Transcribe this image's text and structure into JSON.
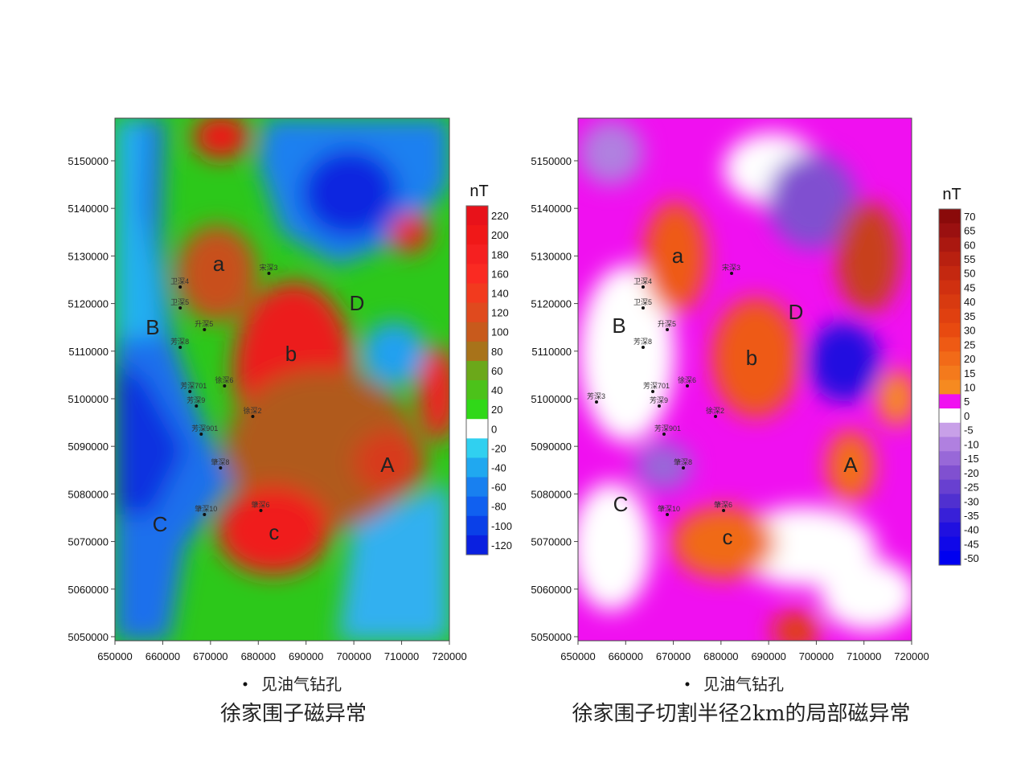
{
  "chart_data": [
    {
      "type": "contour",
      "unit": "nT",
      "caption": "徐家围子磁异常",
      "legend": "见油气钻孔",
      "xlim": [
        650000,
        720000
      ],
      "ylim": [
        5049150,
        5158950
      ],
      "xticks": [
        650000,
        660000,
        670000,
        680000,
        690000,
        700000,
        710000,
        720000
      ],
      "yticks": [
        5050000,
        5060000,
        5070000,
        5080000,
        5090000,
        5100000,
        5110000,
        5120000,
        5130000,
        5140000,
        5150000
      ],
      "colorbar": {
        "levels": [
          220,
          200,
          180,
          160,
          140,
          120,
          100,
          80,
          60,
          40,
          20,
          0,
          -20,
          -40,
          -60,
          -80,
          -100,
          -120
        ],
        "colors": [
          "#e8121a",
          "#f01818",
          "#f52020",
          "#fa2a22",
          "#f23a1e",
          "#e04a1e",
          "#c85a1c",
          "#a8731a",
          "#6ba81a",
          "#4cc21a",
          "#30d818",
          "#ffffff",
          "#30d0f0",
          "#20a8f0",
          "#1880f0",
          "#1060f0",
          "#0a40e8",
          "#0a20e0"
        ]
      },
      "anomalies": [
        {
          "label": "a",
          "x": 671700,
          "y": 5128400
        },
        {
          "label": "b",
          "x": 686850,
          "y": 5109460
        },
        {
          "label": "c",
          "x": 683300,
          "y": 5071960
        },
        {
          "label": "A",
          "x": 707040,
          "y": 5086150
        },
        {
          "label": "B",
          "x": 657900,
          "y": 5115030
        },
        {
          "label": "C",
          "x": 659420,
          "y": 5073650
        },
        {
          "label": "D",
          "x": 700650,
          "y": 5120100
        }
      ],
      "wells": [
        {
          "name": "宋深3",
          "x": 682220,
          "y": 5126350
        },
        {
          "name": "卫深4",
          "x": 663660,
          "y": 5123480
        },
        {
          "name": "卫深5",
          "x": 663660,
          "y": 5119090
        },
        {
          "name": "升深5",
          "x": 668730,
          "y": 5114530
        },
        {
          "name": "芳深8",
          "x": 663660,
          "y": 5110810
        },
        {
          "name": "芳深701",
          "x": 665690,
          "y": 5101520
        },
        {
          "name": "芳深9",
          "x": 667040,
          "y": 5098480
        },
        {
          "name": "芳深901",
          "x": 668050,
          "y": 5092570
        },
        {
          "name": "徐深6",
          "x": 672940,
          "y": 5102700
        },
        {
          "name": "徐深2",
          "x": 678850,
          "y": 5096280
        },
        {
          "name": "肇深8",
          "x": 672100,
          "y": 5085470
        },
        {
          "name": "肇深10",
          "x": 668730,
          "y": 5075680
        },
        {
          "name": "肇深6",
          "x": 680540,
          "y": 5076520
        }
      ]
    },
    {
      "type": "contour",
      "unit": "nT",
      "caption": "徐家围子切割半径2km的局部磁异常",
      "legend": "见油气钻孔",
      "xlim": [
        650000,
        720000
      ],
      "ylim": [
        5049150,
        5158950
      ],
      "xticks": [
        650000,
        660000,
        670000,
        680000,
        690000,
        700000,
        710000,
        720000
      ],
      "yticks": [
        5050000,
        5060000,
        5070000,
        5080000,
        5090000,
        5100000,
        5110000,
        5120000,
        5130000,
        5140000,
        5150000
      ],
      "colorbar": {
        "levels": [
          70,
          65,
          60,
          55,
          50,
          45,
          40,
          35,
          30,
          25,
          20,
          15,
          10,
          5,
          0,
          -5,
          -10,
          -15,
          -20,
          -25,
          -30,
          -35,
          -40,
          -45,
          -50
        ],
        "colors": [
          "#8a0a0a",
          "#9a1010",
          "#aa1810",
          "#b82010",
          "#c42810",
          "#d03010",
          "#d83a10",
          "#e04010",
          "#e84a10",
          "#ee5a14",
          "#f26a18",
          "#f47a1c",
          "#f68a20",
          "#f010f0",
          "#ffffff",
          "#c8a0e8",
          "#b080e0",
          "#9868d8",
          "#8050d0",
          "#6840d0",
          "#5030d0",
          "#3820d8",
          "#2010e0",
          "#1008e8",
          "#0000f0"
        ]
      },
      "anomalies": [
        {
          "label": "a",
          "x": 670920,
          "y": 5130070
        },
        {
          "label": "b",
          "x": 686430,
          "y": 5108610
        },
        {
          "label": "c",
          "x": 681370,
          "y": 5070950
        },
        {
          "label": "A",
          "x": 707180,
          "y": 5086150
        },
        {
          "label": "B",
          "x": 658600,
          "y": 5115370
        },
        {
          "label": "C",
          "x": 658940,
          "y": 5077870
        },
        {
          "label": "D",
          "x": 695710,
          "y": 5118240
        }
      ],
      "wells": [
        {
          "name": "宋深3",
          "x": 682220,
          "y": 5126350
        },
        {
          "name": "卫深4",
          "x": 663660,
          "y": 5123480
        },
        {
          "name": "卫深5",
          "x": 663660,
          "y": 5119090
        },
        {
          "name": "升深5",
          "x": 668730,
          "y": 5114530
        },
        {
          "name": "芳深8",
          "x": 663660,
          "y": 5110810
        },
        {
          "name": "芳深3",
          "x": 653880,
          "y": 5099320
        },
        {
          "name": "芳深701",
          "x": 665690,
          "y": 5101520
        },
        {
          "name": "芳深9",
          "x": 667040,
          "y": 5098480
        },
        {
          "name": "芳深901",
          "x": 668050,
          "y": 5092570
        },
        {
          "name": "徐深6",
          "x": 672940,
          "y": 5102700
        },
        {
          "name": "徐深2",
          "x": 678850,
          "y": 5096280
        },
        {
          "name": "肇深8",
          "x": 672100,
          "y": 5085470
        },
        {
          "name": "肇深10",
          "x": 668730,
          "y": 5075680
        },
        {
          "name": "肇深6",
          "x": 680540,
          "y": 5076520
        }
      ]
    }
  ]
}
